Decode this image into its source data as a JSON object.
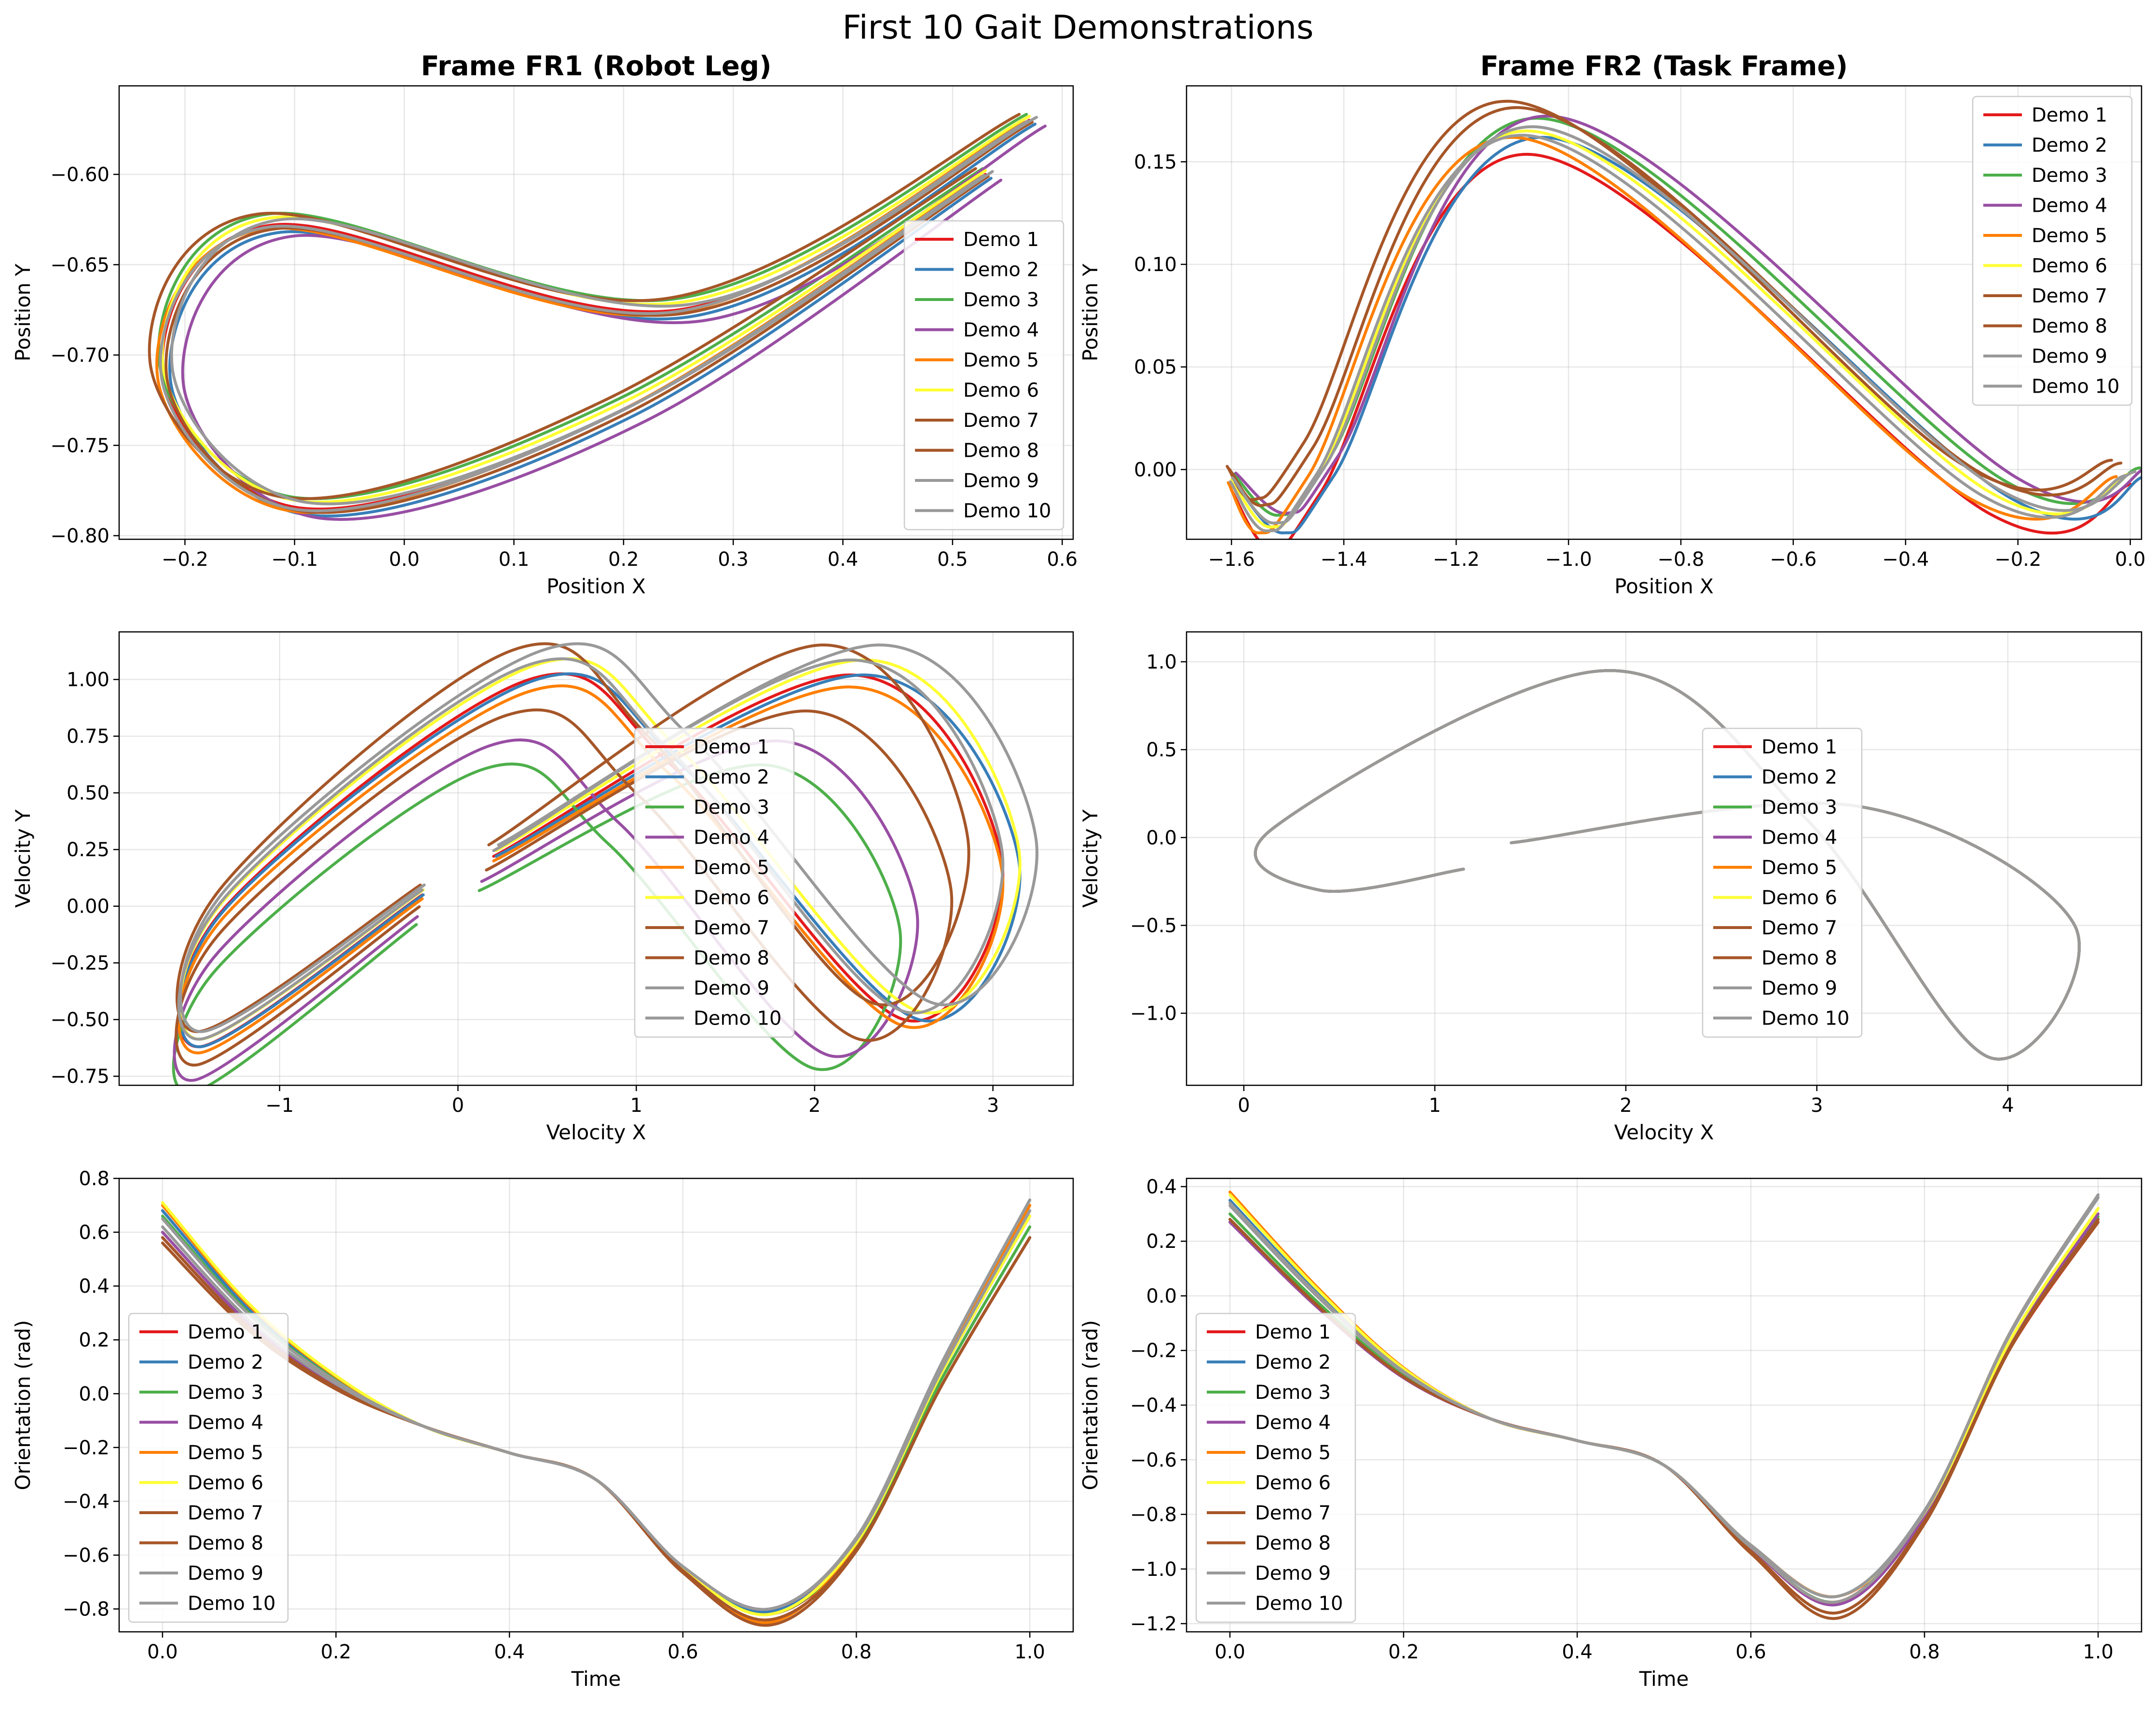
{
  "suptitle": "First 10 Gait Demonstrations",
  "legend_labels": [
    "Demo 1",
    "Demo 2",
    "Demo 3",
    "Demo 4",
    "Demo 5",
    "Demo 6",
    "Demo 7",
    "Demo 8",
    "Demo 9",
    "Demo 10"
  ],
  "series_colors": [
    "#e41a1c",
    "#377eb8",
    "#4daf4a",
    "#984ea3",
    "#ff7f00",
    "#ffff33",
    "#a65628",
    "#a65628",
    "#999999",
    "#999999"
  ],
  "chart_data": [
    {
      "type": "line",
      "title": "Frame FR1 (Robot Leg)",
      "xlabel": "Position X",
      "ylabel": "Position Y",
      "xlim": [
        -0.26,
        0.61
      ],
      "ylim": [
        -0.802,
        -0.551
      ],
      "xticks": [
        -0.2,
        -0.1,
        0.0,
        0.1,
        0.2,
        0.3,
        0.4,
        0.5,
        0.6
      ],
      "xtick_labels": [
        "−0.2",
        "−0.1",
        "0.0",
        "0.1",
        "0.2",
        "0.3",
        "0.4",
        "0.5",
        "0.6"
      ],
      "yticks": [
        -0.8,
        -0.75,
        -0.7,
        -0.65,
        -0.6
      ],
      "ytick_labels": [
        "−0.80",
        "−0.75",
        "−0.70",
        "−0.65",
        "−0.60"
      ],
      "grid": true,
      "legend": "right",
      "shape": "loop",
      "base": {
        "start": [
          0.57,
          -0.57
        ],
        "top_mid": [
          0.25,
          -0.675
        ],
        "top_left": [
          -0.12,
          -0.628
        ],
        "left": [
          -0.22,
          -0.71
        ],
        "bottom": [
          -0.09,
          -0.785
        ],
        "return": [
          0.2,
          -0.73
        ],
        "end": [
          0.53,
          -0.6
        ]
      },
      "offsets": [
        [
          0.0,
          0.0
        ],
        [
          0.008,
          -0.004
        ],
        [
          -0.004,
          0.006
        ],
        [
          0.022,
          -0.006
        ],
        [
          -0.006,
          -0.002
        ],
        [
          0.0,
          0.004
        ],
        [
          -0.014,
          0.006
        ],
        [
          0.004,
          -0.002
        ],
        [
          -0.002,
          -0.001
        ],
        [
          0.01,
          0.003
        ]
      ]
    },
    {
      "type": "line",
      "title": "Frame FR2 (Task Frame)",
      "xlabel": "Position X",
      "ylabel": "Position Y",
      "xlim": [
        -1.68,
        0.02
      ],
      "ylim": [
        -0.034,
        0.187
      ],
      "xticks": [
        -1.6,
        -1.4,
        -1.2,
        -1.0,
        -0.8,
        -0.6,
        -0.4,
        -0.2,
        0.0
      ],
      "xtick_labels": [
        "−1.6",
        "−1.4",
        "−1.2",
        "−1.0",
        "−0.8",
        "−0.6",
        "−0.4",
        "−0.2",
        "0.0"
      ],
      "yticks": [
        0.0,
        0.05,
        0.1,
        0.15
      ],
      "ytick_labels": [
        "0.00",
        "0.05",
        "0.10",
        "0.15"
      ],
      "grid": true,
      "legend": "upper right",
      "shape": "hump",
      "base": {
        "start": [
          -1.6,
          -0.005
        ],
        "dip": [
          -1.53,
          -0.028
        ],
        "rise": [
          -1.44,
          0.0
        ],
        "peak": [
          -1.07,
          0.165
        ],
        "valley": [
          -0.25,
          -0.011
        ],
        "end": [
          0.0,
          -0.002
        ]
      },
      "offsets": [
        [
          0.0,
          -0.011
        ],
        [
          0.03,
          -0.003
        ],
        [
          0.02,
          0.006
        ],
        [
          0.04,
          0.007
        ],
        [
          -0.03,
          -0.003
        ],
        [
          0.0,
          0.0
        ],
        [
          -0.04,
          0.014
        ],
        [
          -0.02,
          0.011
        ],
        [
          0.01,
          0.002
        ],
        [
          -0.01,
          -0.002
        ]
      ]
    },
    {
      "type": "line",
      "title": "",
      "xlabel": "Velocity X",
      "ylabel": "Velocity Y",
      "xlim": [
        -1.9,
        3.45
      ],
      "ylim": [
        -0.79,
        1.21
      ],
      "xticks": [
        -1,
        0,
        1,
        2,
        3
      ],
      "xtick_labels": [
        "−1",
        "0",
        "1",
        "2",
        "3"
      ],
      "yticks": [
        -0.75,
        -0.5,
        -0.25,
        0.0,
        0.25,
        0.5,
        0.75,
        1.0
      ],
      "ytick_labels": [
        "−0.75",
        "−0.50",
        "−0.25",
        "0.00",
        "0.25",
        "0.50",
        "0.75",
        "1.00"
      ],
      "grid": true,
      "legend": "center",
      "shape": "figure-eight",
      "base": {
        "start": [
          0.2,
          0.22
        ],
        "upper_right": [
          2.2,
          1.02
        ],
        "right": [
          3.05,
          0.2
        ],
        "lower_right": [
          2.5,
          -0.5
        ],
        "cross": [
          1.2,
          0.62
        ],
        "upper_left": [
          0.4,
          1.0
        ],
        "left": [
          -1.3,
          0.0
        ],
        "lower_left": [
          -1.45,
          -0.62
        ],
        "end": [
          -0.2,
          0.05
        ]
      },
      "offsets": [
        [
          0.0,
          0.0
        ],
        [
          0.05,
          0.0
        ],
        [
          -0.3,
          -0.3
        ],
        [
          -0.25,
          -0.22
        ],
        [
          0.0,
          -0.04
        ],
        [
          0.05,
          0.05
        ],
        [
          -0.15,
          -0.12
        ],
        [
          -0.1,
          0.1
        ],
        [
          0.1,
          0.1
        ],
        [
          0.0,
          0.05
        ]
      ]
    },
    {
      "type": "line",
      "title": "",
      "xlabel": "Velocity X",
      "ylabel": "Velocity Y",
      "xlim": [
        -0.3,
        4.7
      ],
      "ylim": [
        -1.41,
        1.17
      ],
      "xticks": [
        0,
        1,
        2,
        3,
        4
      ],
      "xtick_labels": [
        "0",
        "1",
        "2",
        "3",
        "4"
      ],
      "yticks": [
        -1.0,
        -0.5,
        0.0,
        0.5,
        1.0
      ],
      "ytick_labels": [
        "−1.0",
        "−0.5",
        "0.0",
        "0.5",
        "1.0"
      ],
      "grid": true,
      "legend": "center",
      "shape": "figure-eight",
      "base": {
        "start": [
          1.4,
          -0.03
        ],
        "upper_right": [
          3.2,
          0.18
        ],
        "right": [
          4.35,
          -0.5
        ],
        "lower_right": [
          3.9,
          -1.25
        ],
        "cross": [
          2.95,
          0.1
        ],
        "upper_left": [
          1.9,
          0.95
        ],
        "left": [
          0.15,
          0.05
        ],
        "lower_left": [
          0.4,
          -0.3
        ],
        "end": [
          1.15,
          -0.18
        ]
      },
      "offsets": [
        [
          0.0,
          0.0
        ],
        [
          0.0,
          0.0
        ],
        [
          0.0,
          0.0
        ],
        [
          0.0,
          0.0
        ],
        [
          0.0,
          0.0
        ],
        [
          0.0,
          0.0
        ],
        [
          0.0,
          0.0
        ],
        [
          0.0,
          0.0
        ],
        [
          0.0,
          0.0
        ],
        [
          0.0,
          0.0
        ]
      ]
    },
    {
      "type": "line",
      "title": "",
      "xlabel": "Time",
      "ylabel": "Orientation (rad)",
      "xlim": [
        -0.05,
        1.05
      ],
      "ylim": [
        -0.885,
        0.8
      ],
      "xticks": [
        0.0,
        0.2,
        0.4,
        0.6,
        0.8,
        1.0
      ],
      "xtick_labels": [
        "0.0",
        "0.2",
        "0.4",
        "0.6",
        "0.8",
        "1.0"
      ],
      "yticks": [
        -0.8,
        -0.6,
        -0.4,
        -0.2,
        0.0,
        0.2,
        0.4,
        0.6,
        0.8
      ],
      "ytick_labels": [
        "−0.8",
        "−0.6",
        "−0.4",
        "−0.2",
        "0.0",
        "0.2",
        "0.4",
        "0.6",
        "0.8"
      ],
      "grid": true,
      "legend": "center left",
      "shape": "time",
      "knots_x": [
        0.0,
        0.1,
        0.2,
        0.3,
        0.4,
        0.5,
        0.6,
        0.7,
        0.8,
        0.9,
        1.0
      ],
      "knots_y": [
        0.66,
        0.3,
        0.05,
        -0.12,
        -0.22,
        -0.32,
        -0.65,
        -0.82,
        -0.55,
        0.1,
        0.68
      ],
      "start_values": [
        0.58,
        0.68,
        0.66,
        0.6,
        0.7,
        0.71,
        0.56,
        0.58,
        0.62,
        0.65
      ],
      "end_values": [
        0.58,
        0.72,
        0.62,
        0.66,
        0.7,
        0.66,
        0.58,
        0.58,
        0.68,
        0.72
      ],
      "min_values": [
        -0.82,
        -0.81,
        -0.82,
        -0.8,
        -0.85,
        -0.82,
        -0.86,
        -0.84,
        -0.8,
        -0.8
      ]
    },
    {
      "type": "line",
      "title": "",
      "xlabel": "Time",
      "ylabel": "Orientation (rad)",
      "xlim": [
        -0.05,
        1.05
      ],
      "ylim": [
        -1.23,
        0.43
      ],
      "xticks": [
        0.0,
        0.2,
        0.4,
        0.6,
        0.8,
        1.0
      ],
      "xtick_labels": [
        "0.0",
        "0.2",
        "0.4",
        "0.6",
        "0.8",
        "1.0"
      ],
      "yticks": [
        -1.2,
        -1.0,
        -0.8,
        -0.6,
        -0.4,
        -0.2,
        0.0,
        0.2,
        0.4
      ],
      "ytick_labels": [
        "−1.2",
        "−1.0",
        "−0.8",
        "−0.6",
        "−0.4",
        "−0.2",
        "0.0",
        "0.2",
        "0.4"
      ],
      "grid": true,
      "legend": "center left",
      "shape": "time",
      "knots_x": [
        0.0,
        0.1,
        0.2,
        0.3,
        0.4,
        0.5,
        0.6,
        0.7,
        0.8,
        0.9,
        1.0
      ],
      "knots_y": [
        0.33,
        0.0,
        -0.28,
        -0.45,
        -0.53,
        -0.62,
        -0.92,
        -1.12,
        -0.8,
        -0.15,
        0.33
      ],
      "start_values": [
        0.27,
        0.35,
        0.3,
        0.27,
        0.38,
        0.37,
        0.28,
        0.28,
        0.34,
        0.33
      ],
      "end_values": [
        0.27,
        0.36,
        0.29,
        0.3,
        0.37,
        0.32,
        0.27,
        0.28,
        0.36,
        0.37
      ],
      "min_values": [
        -1.1,
        -1.1,
        -1.12,
        -1.13,
        -1.12,
        -1.1,
        -1.18,
        -1.16,
        -1.1,
        -1.12
      ]
    }
  ]
}
